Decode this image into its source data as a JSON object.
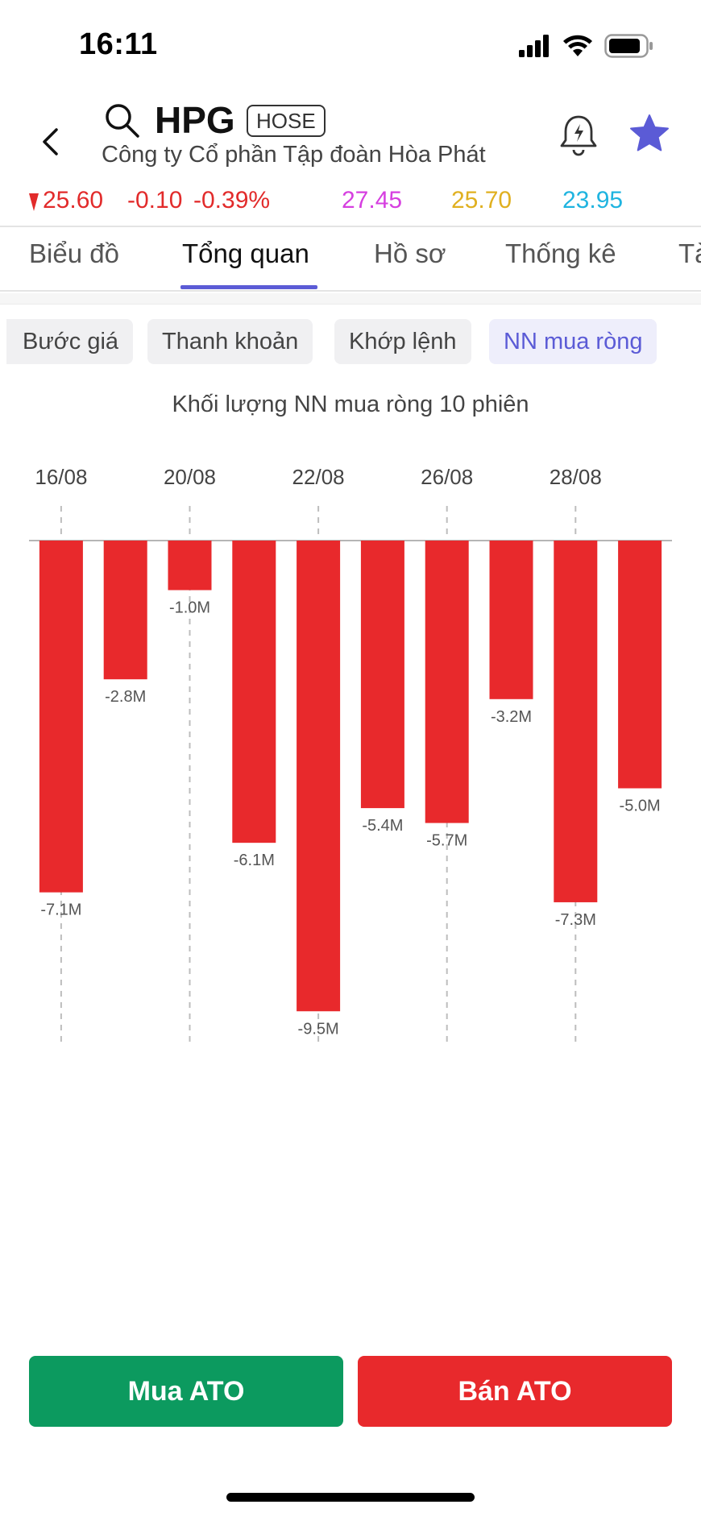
{
  "status_bar": {
    "time": "16:11",
    "icons": [
      "signal-icon",
      "wifi-icon",
      "battery-icon"
    ]
  },
  "header": {
    "ticker": "HPG",
    "exchange": "HOSE",
    "company": "Công ty Cổ phần Tập đoàn Hòa Phát",
    "icons": [
      "back-icon",
      "search-icon",
      "bell-icon",
      "star-icon"
    ]
  },
  "price_row": {
    "price": "25.60",
    "change": "-0.10",
    "change_pct": "-0.39%",
    "ceiling": "27.45",
    "reference": "25.70",
    "floor": "23.95"
  },
  "colors": {
    "down": "#e22b2b",
    "ceiling": "#d63fe0",
    "reference": "#e0b020",
    "floor": "#1fb4e0",
    "accent": "#5b5bd6",
    "buy": "#0c9a5f",
    "sell": "#e8292c",
    "bar": "#e8292c"
  },
  "tabs": [
    "Biểu đồ",
    "Tổng quan",
    "Hồ sơ",
    "Thống kê",
    "Tà"
  ],
  "active_tab": "Tổng quan",
  "chips": [
    "Bước giá",
    "Thanh khoản",
    "Khớp lệnh",
    "NN mua ròng"
  ],
  "active_chip": "NN mua ròng",
  "chart_title": "Khối lượng NN mua ròng 10 phiên",
  "chart_data": {
    "type": "bar",
    "title": "Khối lượng NN mua ròng 10 phiên",
    "tick_labels": [
      "16/08",
      "20/08",
      "22/08",
      "26/08",
      "28/08"
    ],
    "tick_positions": [
      0,
      2,
      4,
      6,
      8
    ],
    "values": [
      -7.1,
      -2.8,
      -1.0,
      -6.1,
      -9.5,
      -5.4,
      -5.7,
      -3.2,
      -7.3,
      -5.0
    ],
    "value_labels": [
      "-7.1M",
      "-2.8M",
      "-1.0M",
      "-6.1M",
      "-9.5M",
      "-5.4M",
      "-5.7M",
      "-3.2M",
      "-7.3M",
      "-5.0M"
    ],
    "unit": "M",
    "ylim": [
      -10.4,
      0
    ],
    "grid": "vertical dashed at ticks"
  },
  "buttons": {
    "buy": "Mua ATO",
    "sell": "Bán ATO"
  }
}
